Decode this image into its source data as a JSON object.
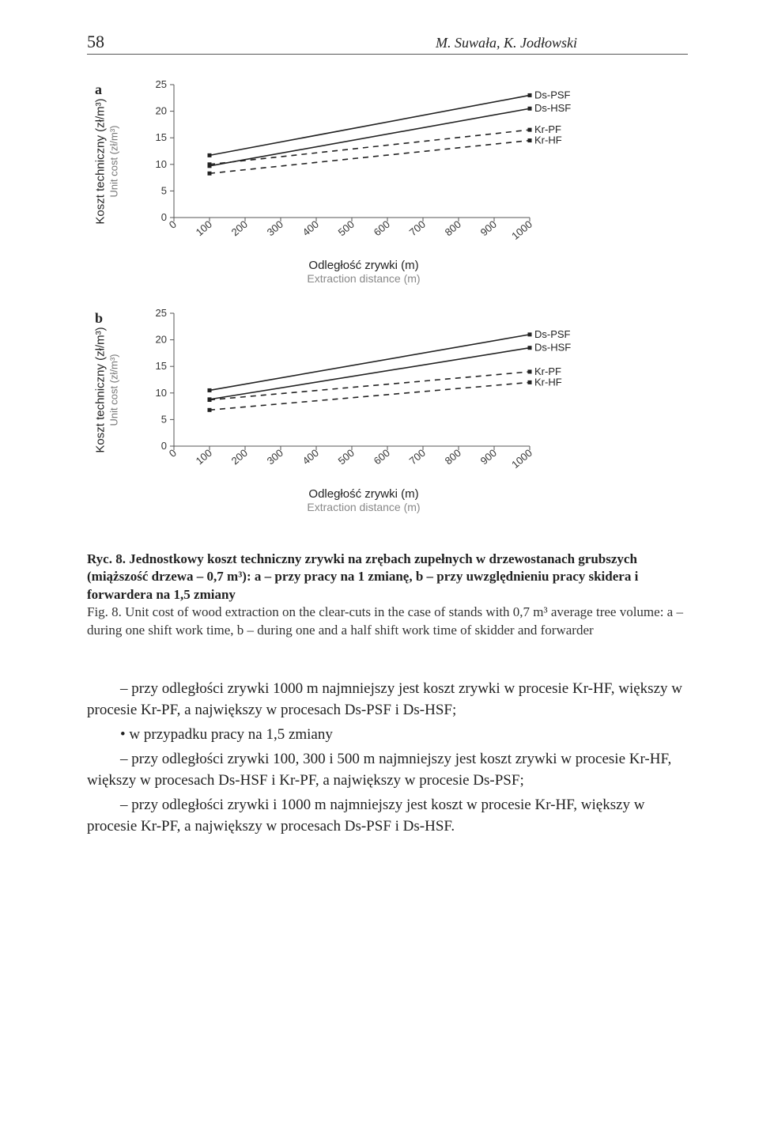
{
  "page_number": "58",
  "authors": "M. Suwała, K. Jodłowski",
  "panel_a_letter": "a",
  "panel_b_letter": "b",
  "ylabel_main": "Koszt techniczny (zł/m³)",
  "ylabel_sub": "Unit cost (zł/m³)",
  "xlabel_main": "Odległość zrywki (m)",
  "xlabel_sub": "Extraction distance (m)",
  "chart_a": {
    "type": "line",
    "xlim": [
      0,
      1000
    ],
    "ylim": [
      0,
      25
    ],
    "xticks": [
      0,
      100,
      200,
      300,
      400,
      500,
      600,
      700,
      800,
      900,
      1000
    ],
    "yticks": [
      0,
      5,
      10,
      15,
      20,
      25
    ],
    "xtick_labels": [
      "0",
      "100",
      "200",
      "300",
      "400",
      "500",
      "600",
      "700",
      "800",
      "900",
      "1000"
    ],
    "rotated_xticks": true,
    "background_color": "#ffffff",
    "series": [
      {
        "name": "Ds-PSF",
        "style": "solid",
        "marker": "square",
        "x": [
          100,
          1000
        ],
        "y": [
          11.7,
          23.0
        ],
        "color": "#222222",
        "line_width": 1.6
      },
      {
        "name": "Ds-HSF",
        "style": "solid",
        "marker": "square",
        "x": [
          100,
          1000
        ],
        "y": [
          9.7,
          20.5
        ],
        "color": "#222222",
        "line_width": 1.6
      },
      {
        "name": "Kr-PF",
        "style": "dash",
        "marker": "square",
        "x": [
          100,
          1000
        ],
        "y": [
          10.0,
          16.5
        ],
        "color": "#222222",
        "line_width": 1.6,
        "dash": "7 6"
      },
      {
        "name": "Kr-HF",
        "style": "dash",
        "marker": "square",
        "x": [
          100,
          1000
        ],
        "y": [
          8.3,
          14.5
        ],
        "color": "#222222",
        "line_width": 1.6,
        "dash": "7 6"
      }
    ],
    "label_font_family": "Arial",
    "tick_fontsize": 13
  },
  "chart_b": {
    "type": "line",
    "xlim": [
      0,
      1000
    ],
    "ylim": [
      0,
      25
    ],
    "xticks": [
      0,
      100,
      200,
      300,
      400,
      500,
      600,
      700,
      800,
      900,
      1000
    ],
    "yticks": [
      0,
      5,
      10,
      15,
      20,
      25
    ],
    "xtick_labels": [
      "0",
      "100",
      "200",
      "300",
      "400",
      "500",
      "600",
      "700",
      "800",
      "900",
      "1000"
    ],
    "rotated_xticks": true,
    "background_color": "#ffffff",
    "series": [
      {
        "name": "Ds-PSF",
        "style": "solid",
        "marker": "square",
        "x": [
          100,
          1000
        ],
        "y": [
          10.5,
          21.0
        ],
        "color": "#222222",
        "line_width": 1.6
      },
      {
        "name": "Ds-HSF",
        "style": "solid",
        "marker": "square",
        "x": [
          100,
          1000
        ],
        "y": [
          8.8,
          18.5
        ],
        "color": "#222222",
        "line_width": 1.6
      },
      {
        "name": "Kr-PF",
        "style": "dash",
        "marker": "square",
        "x": [
          100,
          1000
        ],
        "y": [
          8.7,
          14.0
        ],
        "color": "#222222",
        "line_width": 1.6,
        "dash": "7 6"
      },
      {
        "name": "Kr-HF",
        "style": "dash",
        "marker": "square",
        "x": [
          100,
          1000
        ],
        "y": [
          6.8,
          12.0
        ],
        "color": "#222222",
        "line_width": 1.6,
        "dash": "7 6"
      }
    ],
    "label_font_family": "Arial",
    "tick_fontsize": 13
  },
  "caption_bold": "Ryc. 8. Jednostkowy koszt techniczny zrywki na zrębach zupełnych w drzewostanach grubszych (miąższość drzewa – 0,7 m³): a – przy pracy na 1 zmianę, b – przy uwzględnieniu pracy skidera i forwardera na 1,5 zmiany",
  "caption_en": "Fig. 8. Unit cost of wood extraction on the clear-cuts in the case of stands with 0,7 m³ average tree volume: a – during one shift work time, b – during one and a half shift work time of skidder and forwarder",
  "para1": "– przy odległości zrywki 1000 m najmniejszy jest koszt zrywki w procesie Kr-HF, większy w procesie Kr-PF, a największy w procesach Ds-PSF i Ds-HSF;",
  "bullet": "• w przypadku pracy na 1,5 zmiany",
  "para2": "– przy odległości zrywki 100, 300 i 500 m  najmniejszy jest koszt zrywki w procesie Kr-HF, większy w procesach Ds-HSF i Kr-PF, a największy w procesie Ds-PSF;",
  "para3": "– przy odległości zrywki i 1000 m najmniejszy jest koszt w procesie Kr-HF, większy w procesie Kr-PF, a największy w procesach Ds-PSF i Ds-HSF."
}
